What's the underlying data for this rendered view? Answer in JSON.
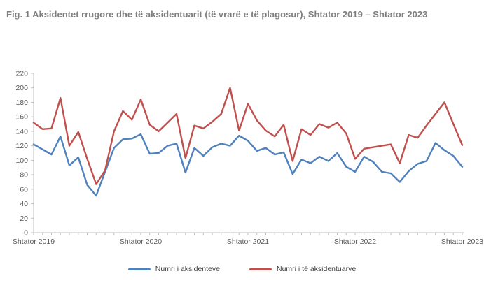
{
  "title": "Fig. 1 Aksidentet rrugore dhe të aksidentuarit (të vrarë e të plagosur), Shtator 2019 – Shtator 2023",
  "chart_data": {
    "type": "line",
    "n_points": 49,
    "x_tick_labels": [
      "Shtator 2019",
      "Shtator 2020",
      "Shtator 2021",
      "Shtator 2022",
      "Shtator 2023"
    ],
    "x_tick_indices": [
      0,
      12,
      24,
      36,
      48
    ],
    "x_frequency": "monthly",
    "ylim": [
      0,
      220
    ],
    "ytick_step": 20,
    "grid": "off",
    "legend_position": "bottom-center",
    "axis_color": "#bfbfbf",
    "tick_label_color": "#595959",
    "series": [
      {
        "name": "Numri i aksidenteve",
        "color": "#4f81bd",
        "values": [
          122,
          115,
          108,
          133,
          93,
          104,
          66,
          51,
          84,
          117,
          129,
          130,
          136,
          109,
          110,
          120,
          123,
          83,
          117,
          106,
          118,
          123,
          120,
          134,
          127,
          113,
          117,
          108,
          111,
          81,
          101,
          96,
          105,
          99,
          110,
          91,
          84,
          105,
          98,
          84,
          82,
          70,
          85,
          95,
          99,
          124,
          114,
          106,
          91
        ]
      },
      {
        "name": "Numri i të aksidentuarve",
        "color": "#c0504d",
        "values": [
          152,
          143,
          144,
          186,
          120,
          139,
          102,
          67,
          86,
          140,
          168,
          156,
          184,
          149,
          140,
          152,
          164,
          103,
          148,
          144,
          153,
          164,
          200,
          141,
          178,
          155,
          141,
          133,
          149,
          99,
          143,
          135,
          150,
          145,
          152,
          137,
          102,
          116,
          118,
          120,
          122,
          96,
          135,
          131,
          148,
          164,
          180,
          150,
          121
        ]
      }
    ]
  }
}
